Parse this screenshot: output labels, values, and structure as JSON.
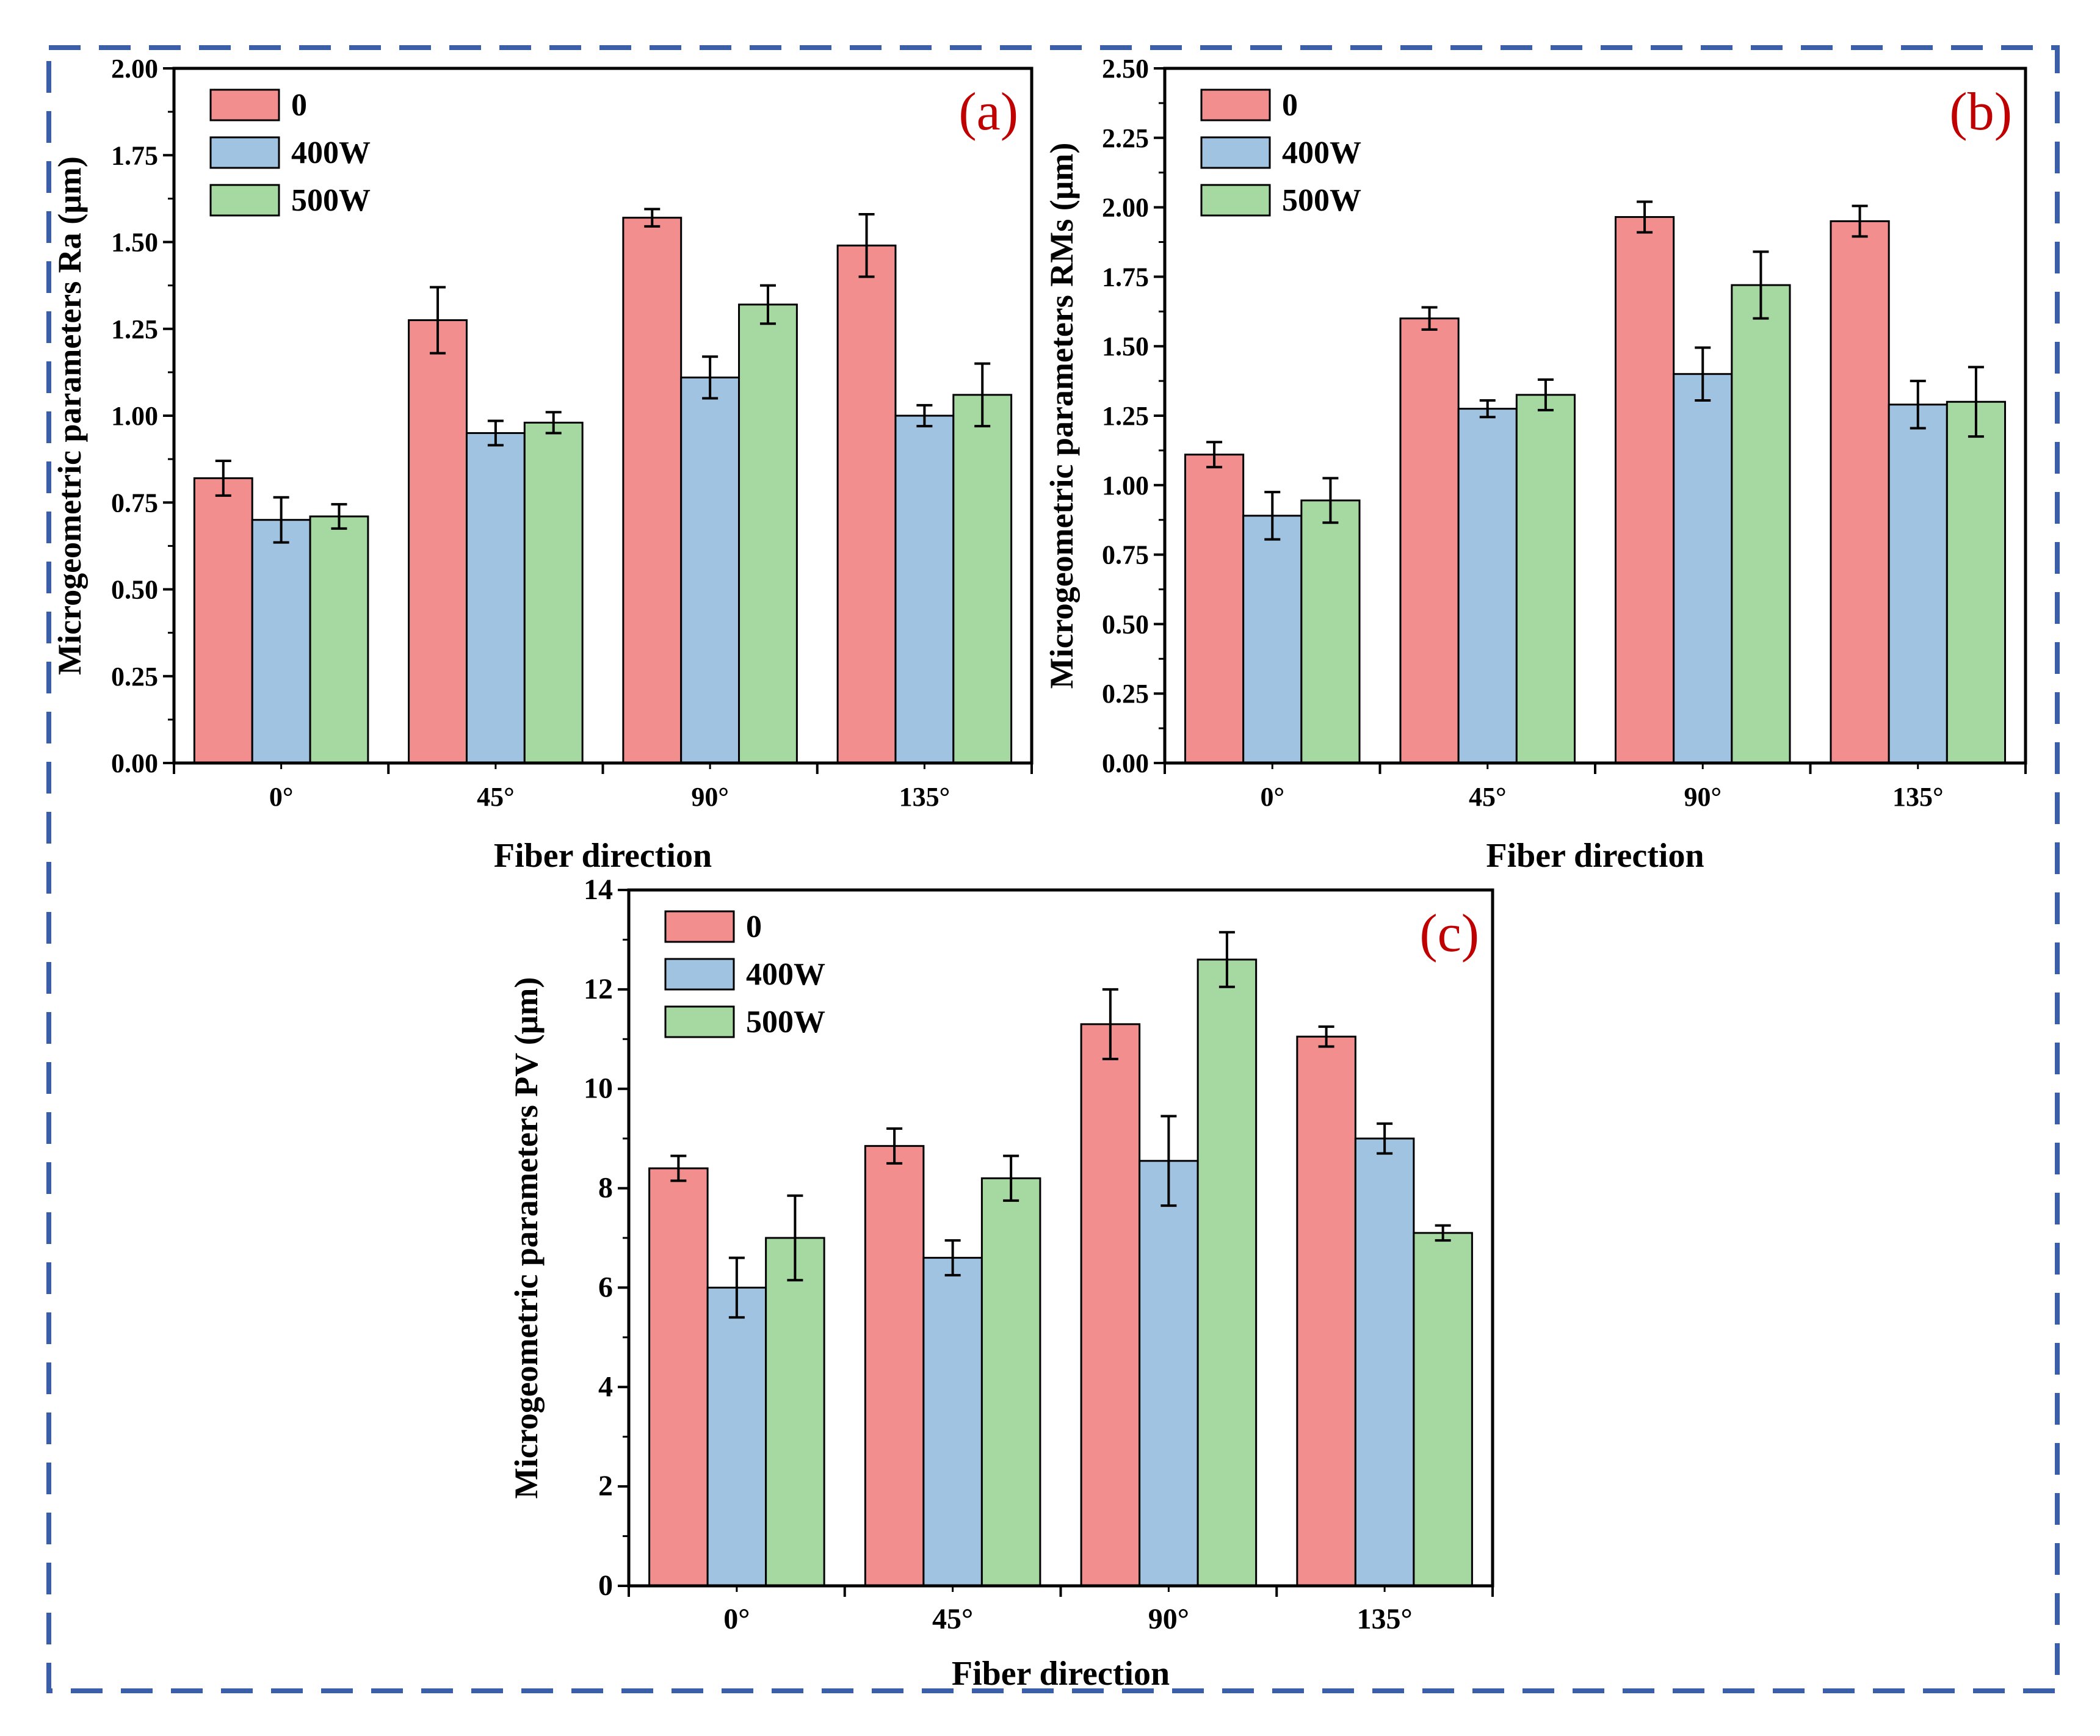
{
  "colors": {
    "frame": "#3b5ea8",
    "series": [
      "#f28e8e",
      "#a0c3e2",
      "#a6d9a1"
    ],
    "panel_label": "#c00000"
  },
  "chart_data": [
    {
      "type": "bar",
      "panel_label": "(a)",
      "title": "",
      "xlabel": "Fiber direction",
      "ylabel": "Microgeometric parameters Ra (μm)",
      "ylim": [
        0,
        2.0
      ],
      "yticks": [
        0,
        0.25,
        0.5,
        0.75,
        1.0,
        1.25,
        1.5,
        1.75,
        2.0
      ],
      "ytick_labels": [
        "0.00",
        "0.25",
        "0.50",
        "0.75",
        "1.00",
        "1.25",
        "1.50",
        "1.75",
        "2.00"
      ],
      "categories": [
        "0°",
        "45°",
        "90°",
        "135°"
      ],
      "legend_position": "top-left",
      "series": [
        {
          "name": "0",
          "values": [
            0.82,
            1.275,
            1.57,
            1.49
          ],
          "errors": [
            0.05,
            0.095,
            0.025,
            0.09
          ]
        },
        {
          "name": "400W",
          "values": [
            0.7,
            0.95,
            1.11,
            1.0
          ],
          "errors": [
            0.065,
            0.035,
            0.06,
            0.03
          ]
        },
        {
          "name": "500W",
          "values": [
            0.71,
            0.98,
            1.32,
            1.06
          ],
          "errors": [
            0.035,
            0.03,
            0.055,
            0.09
          ]
        }
      ]
    },
    {
      "type": "bar",
      "panel_label": "(b)",
      "title": "",
      "xlabel": "Fiber direction",
      "ylabel": "Microgeometric parameters RMs (μm)",
      "ylim": [
        0,
        2.5
      ],
      "yticks": [
        0,
        0.25,
        0.5,
        0.75,
        1.0,
        1.25,
        1.5,
        1.75,
        2.0,
        2.25,
        2.5
      ],
      "ytick_labels": [
        "0.00",
        "0.25",
        "0.50",
        "0.75",
        "1.00",
        "1.25",
        "1.50",
        "1.75",
        "2.00",
        "2.25",
        "2.50"
      ],
      "categories": [
        "0°",
        "45°",
        "90°",
        "135°"
      ],
      "legend_position": "top-left",
      "series": [
        {
          "name": "0",
          "values": [
            1.11,
            1.6,
            1.965,
            1.95
          ],
          "errors": [
            0.045,
            0.04,
            0.055,
            0.055
          ]
        },
        {
          "name": "400W",
          "values": [
            0.89,
            1.275,
            1.4,
            1.29
          ],
          "errors": [
            0.085,
            0.03,
            0.095,
            0.085
          ]
        },
        {
          "name": "500W",
          "values": [
            0.945,
            1.325,
            1.72,
            1.3
          ],
          "errors": [
            0.08,
            0.055,
            0.12,
            0.125
          ]
        }
      ]
    },
    {
      "type": "bar",
      "panel_label": "(c)",
      "title": "",
      "xlabel": "Fiber direction",
      "ylabel": "Microgeometric parameters PV (μm)",
      "ylim": [
        0,
        14
      ],
      "yticks": [
        0,
        2,
        4,
        6,
        8,
        10,
        12,
        14
      ],
      "ytick_labels": [
        "0",
        "2",
        "4",
        "6",
        "8",
        "10",
        "12",
        "14"
      ],
      "categories": [
        "0°",
        "45°",
        "90°",
        "135°"
      ],
      "legend_position": "top-left",
      "series": [
        {
          "name": "0",
          "values": [
            8.4,
            8.85,
            11.3,
            11.05
          ],
          "errors": [
            0.25,
            0.35,
            0.7,
            0.2
          ]
        },
        {
          "name": "400W",
          "values": [
            6.0,
            6.6,
            8.55,
            9.0
          ],
          "errors": [
            0.6,
            0.35,
            0.9,
            0.3
          ]
        },
        {
          "name": "500W",
          "values": [
            7.0,
            8.2,
            12.6,
            7.1
          ],
          "errors": [
            0.85,
            0.45,
            0.55,
            0.15
          ]
        }
      ]
    }
  ]
}
